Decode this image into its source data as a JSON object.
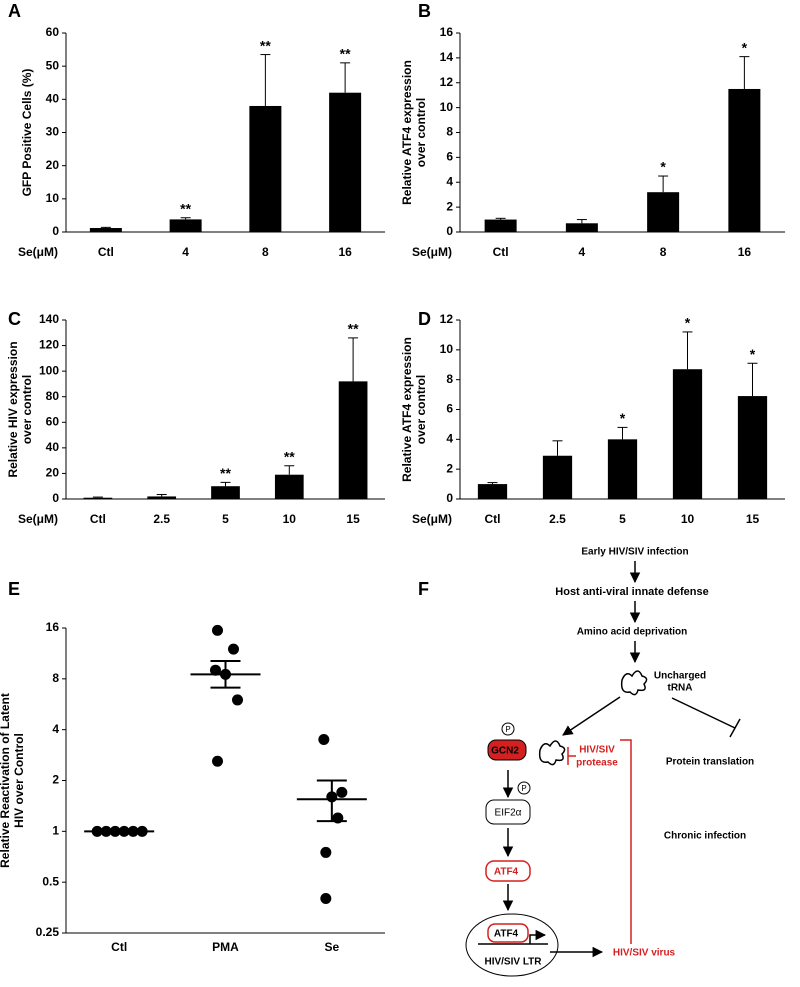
{
  "chart_data": [
    {
      "label": "A",
      "type": "bar",
      "ylabel": [
        "GFP Positive Cells (%)"
      ],
      "xlabel": "Se(μM)",
      "categories": [
        "Ctl",
        "4",
        "8",
        "16"
      ],
      "values": [
        1.2,
        3.8,
        38,
        42
      ],
      "errors": [
        0.2,
        0.5,
        15.5,
        9
      ],
      "annotations": [
        null,
        "**",
        "**",
        "**"
      ],
      "color": "#000000",
      "ylim": [
        0,
        60
      ],
      "yticks": [
        0,
        10,
        20,
        30,
        40,
        50,
        60
      ],
      "grid": false
    },
    {
      "label": "B",
      "type": "bar",
      "ylabel": [
        "Relative ATF4 expression",
        "over control"
      ],
      "xlabel": "Se(μM)",
      "categories": [
        "Ctl",
        "4",
        "8",
        "16"
      ],
      "values": [
        1,
        0.7,
        3.2,
        11.5
      ],
      "errors": [
        0.1,
        0.3,
        1.3,
        2.6
      ],
      "annotations": [
        null,
        null,
        "*",
        "*"
      ],
      "color": "#000000",
      "ylim": [
        0,
        16
      ],
      "yticks": [
        0,
        2,
        4,
        6,
        8,
        10,
        12,
        14,
        16
      ],
      "grid": false
    },
    {
      "label": "C",
      "type": "bar",
      "ylabel": [
        "Relative HIV expression",
        "over control"
      ],
      "xlabel": "Se(μM)",
      "categories": [
        "Ctl",
        "2.5",
        "5",
        "10",
        "15"
      ],
      "values": [
        1,
        2,
        10,
        19,
        92
      ],
      "errors": [
        0.5,
        1.5,
        3,
        7,
        34
      ],
      "annotations": [
        null,
        null,
        "**",
        "**",
        "**"
      ],
      "color": "#000000",
      "ylim": [
        0,
        140
      ],
      "yticks": [
        0,
        20,
        40,
        60,
        80,
        100,
        120,
        140
      ],
      "grid": false
    },
    {
      "label": "D",
      "type": "bar",
      "ylabel": [
        "Relative ATF4 expression",
        "over control"
      ],
      "xlabel": "Se(μM)",
      "categories": [
        "Ctl",
        "2.5",
        "5",
        "10",
        "15"
      ],
      "values": [
        1,
        2.9,
        4,
        8.7,
        6.9
      ],
      "errors": [
        0.1,
        1,
        0.8,
        2.5,
        2.2
      ],
      "annotations": [
        null,
        null,
        "*",
        "*",
        "*"
      ],
      "color": "#000000",
      "ylim": [
        0,
        12
      ],
      "yticks": [
        0,
        2,
        4,
        6,
        8,
        10,
        12
      ],
      "grid": false
    },
    {
      "label": "E",
      "type": "dot",
      "ylabel": [
        "Relative Reactivation of Latent",
        "HIV over Control"
      ],
      "categories": [
        "Ctl",
        "PMA",
        "Se"
      ],
      "points": [
        [
          1,
          1,
          1,
          1,
          1,
          1
        ],
        [
          15.5,
          12,
          9,
          8.5,
          6,
          2.6
        ],
        [
          3.5,
          1.7,
          1.6,
          1.2,
          0.75,
          0.4
        ]
      ],
      "means": [
        1,
        8.5,
        1.55
      ],
      "sem_upper": [
        1,
        10.2,
        2.0
      ],
      "sem_lower": [
        1,
        7.1,
        1.15
      ],
      "color": "#000000",
      "log_scale": true,
      "ylim": [
        0.25,
        16
      ],
      "yticks": [
        0.25,
        0.5,
        1,
        2,
        4,
        8,
        16
      ],
      "grid": false
    }
  ],
  "diagram": {
    "label": "F",
    "early": "Early HIV/SIV infection",
    "defense": "Host anti-viral innate defense",
    "deprivation": "Amino acid deprivation",
    "trna": [
      "Uncharged",
      "tRNA"
    ],
    "translation": "Protein translation",
    "phospho": "P",
    "gcn2": "GCN2",
    "protease": [
      "HIV/SIV",
      "protease"
    ],
    "eif2a": "EIF2α",
    "atf4": "ATF4",
    "chronic": "Chronic infection",
    "ltr": "HIV/SIV LTR",
    "virus": "HIV/SIV virus"
  }
}
